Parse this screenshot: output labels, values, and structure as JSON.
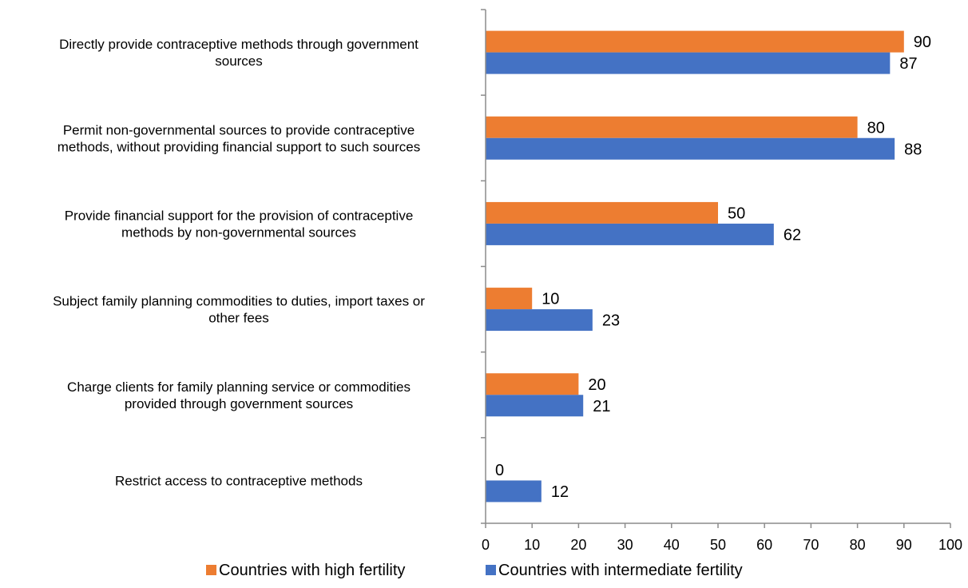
{
  "chart_data": {
    "type": "bar",
    "orientation": "horizontal",
    "categories": [
      [
        "Directly provide contraceptive methods through government",
        "sources"
      ],
      [
        "Permit non-governmental sources to provide contraceptive",
        "methods, without providing financial support to such sources"
      ],
      [
        "Provide financial support for the provision of contraceptive",
        "methods by non-governmental sources"
      ],
      [
        "Subject family planning commodities to duties, import taxes or",
        "other fees"
      ],
      [
        "Charge clients for family planning service or commodities",
        "provided through government sources"
      ],
      [
        "Restrict access to contraceptive methods"
      ]
    ],
    "series": [
      {
        "name": "Countries with high fertility",
        "color": "#ED7D31",
        "values": [
          90,
          80,
          50,
          10,
          20,
          0
        ]
      },
      {
        "name": "Countries with intermediate fertility",
        "color": "#4472C4",
        "values": [
          87,
          88,
          62,
          23,
          21,
          12
        ]
      }
    ],
    "xlim": [
      0,
      100
    ],
    "xticks": [
      0,
      10,
      20,
      30,
      40,
      50,
      60,
      70,
      80,
      90,
      100
    ],
    "grid": false,
    "legend_position": "bottom",
    "title": "",
    "xlabel": "",
    "ylabel": ""
  }
}
